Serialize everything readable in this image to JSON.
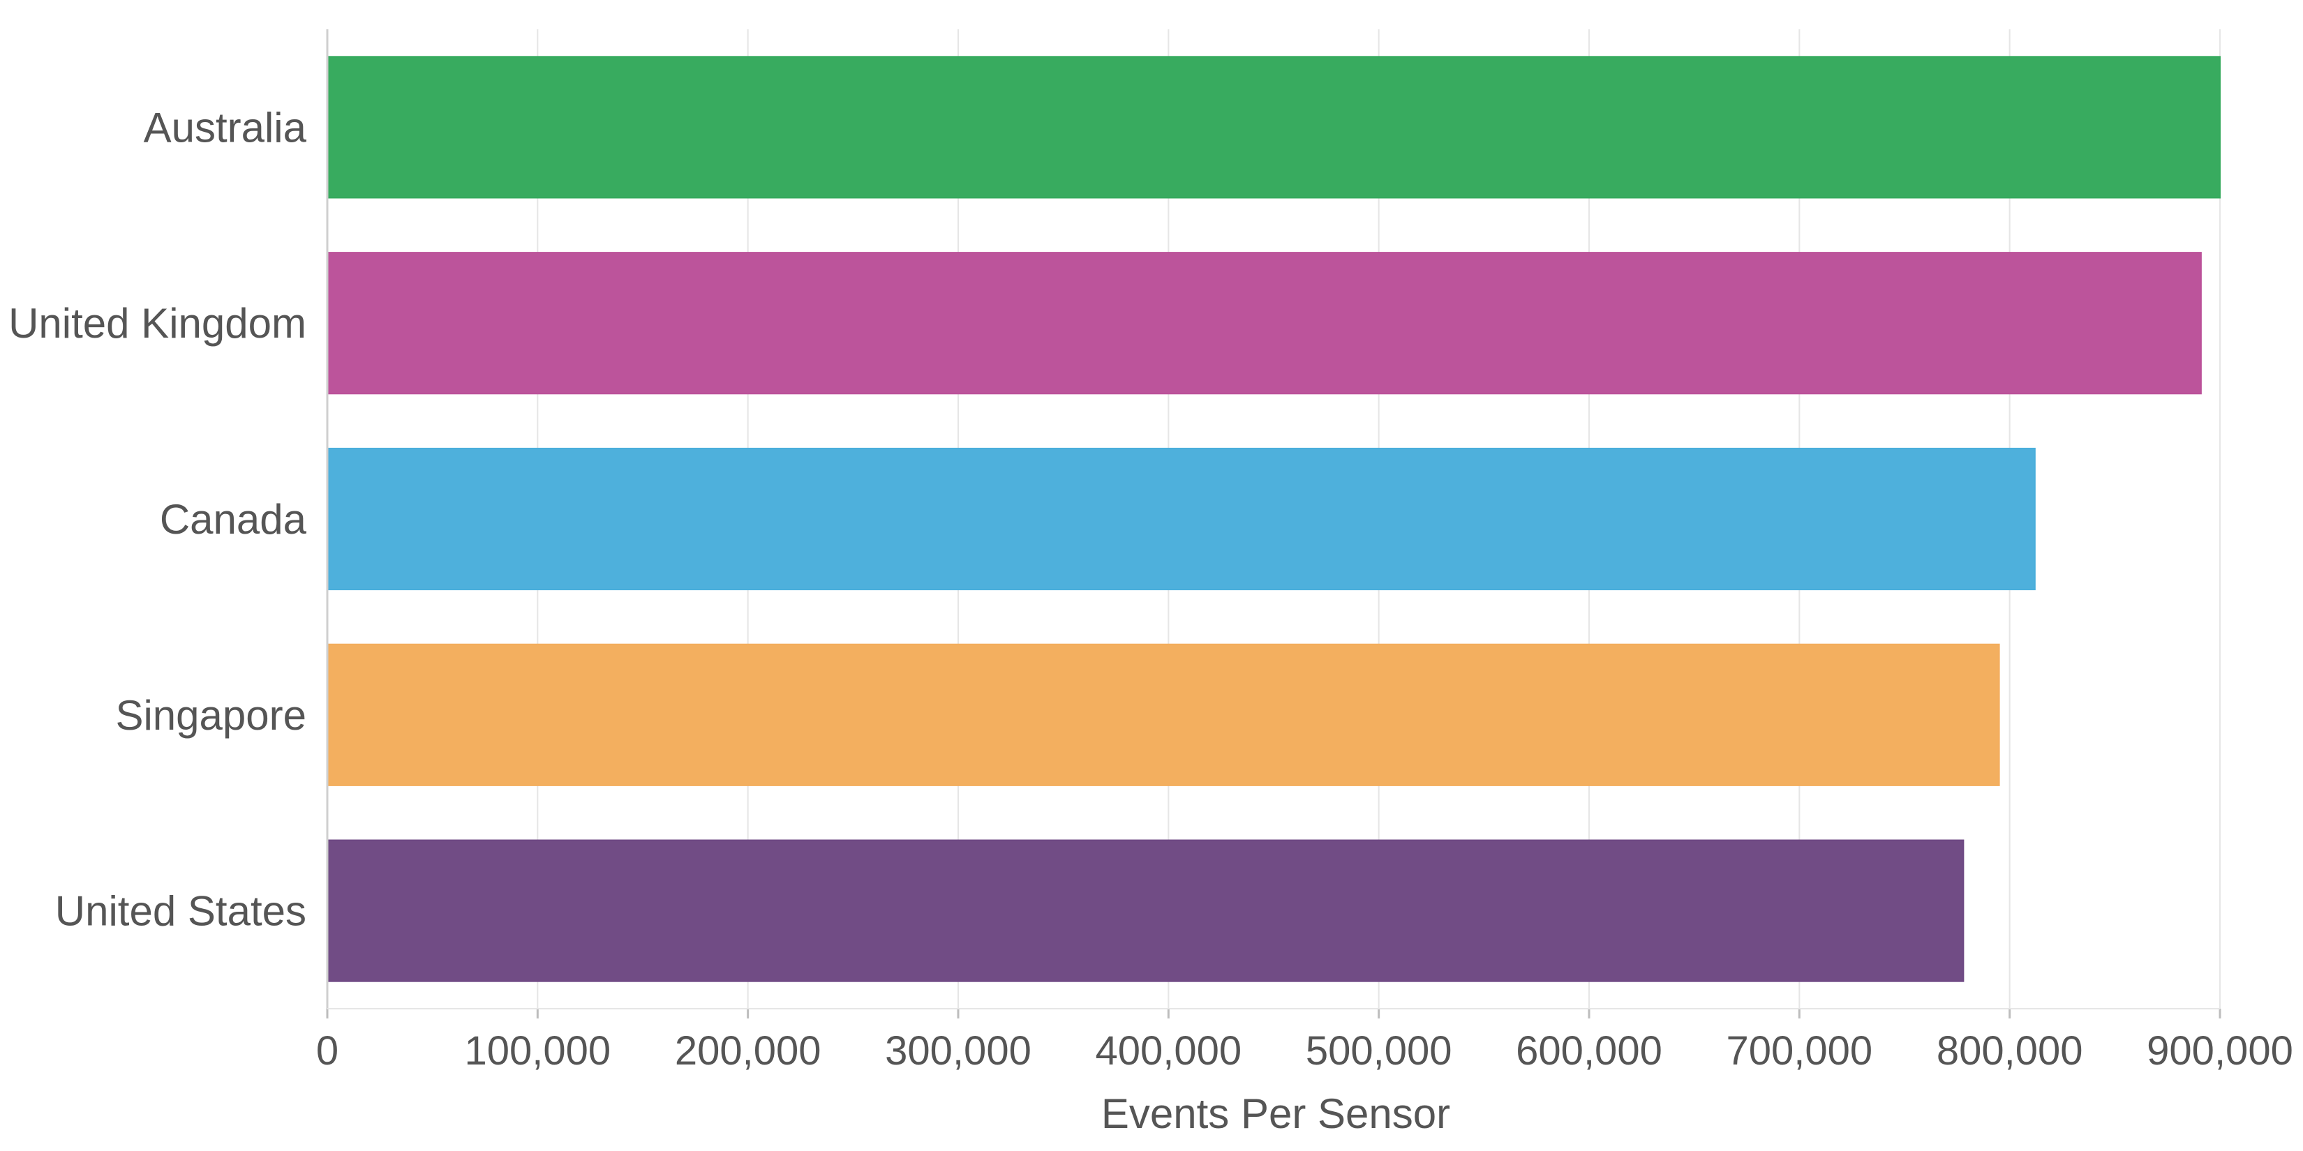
{
  "chart_data": {
    "type": "bar",
    "orientation": "horizontal",
    "categories": [
      "Australia",
      "United Kingdom",
      "Canada",
      "Singapore",
      "United States"
    ],
    "values": [
      900000,
      891000,
      812000,
      795000,
      778000
    ],
    "colors": [
      "#34a95c",
      "#bb5199",
      "#4aaedb",
      "#f3ad5c",
      "#6e4883"
    ],
    "xlabel": "Events Per Sensor",
    "ylabel": "",
    "xlim": [
      0,
      900000
    ],
    "xticks": [
      0,
      100000,
      200000,
      300000,
      400000,
      500000,
      600000,
      700000,
      800000,
      900000
    ],
    "xtick_labels": [
      "0",
      "100,000",
      "200,000",
      "300,000",
      "400,000",
      "500,000",
      "600,000",
      "700,000",
      "800,000",
      "900,000"
    ],
    "grid": true
  }
}
